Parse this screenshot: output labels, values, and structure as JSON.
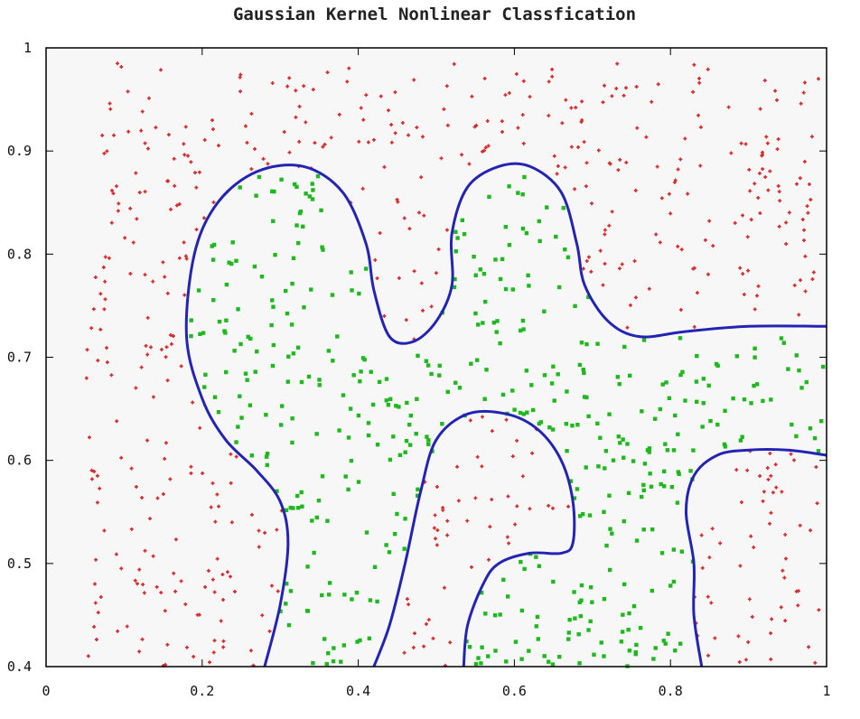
{
  "chart_data": {
    "type": "scatter",
    "title": "Gaussian Kernel Nonlinear Classfication",
    "xlabel": "",
    "ylabel": "",
    "xlim": [
      0,
      1
    ],
    "ylim": [
      0.4,
      1
    ],
    "x_ticks": [
      "0",
      "0.2",
      "0.4",
      "0.6",
      "0.8",
      "1"
    ],
    "y_ticks": [
      "0.4",
      "0.5",
      "0.6",
      "0.7",
      "0.8",
      "0.9",
      "1"
    ],
    "grid": false,
    "legend": "none",
    "colors": {
      "class_outside": "#d42a2a",
      "class_inside": "#1fb81f",
      "boundary": "#2424b4",
      "plot_bg": "#f7f7f7"
    },
    "series": [
      {
        "marker": "cross",
        "color": "#d42a2a",
        "count_estimate": 560,
        "x_samples": [
          0.05,
          0.08,
          0.12,
          0.15,
          0.18,
          0.22,
          0.26,
          0.3,
          0.36,
          0.4,
          0.45,
          0.5,
          0.55,
          0.6,
          0.66,
          0.7,
          0.75,
          0.8,
          0.85,
          0.9,
          0.07,
          0.1,
          0.13,
          0.16,
          0.1,
          0.14,
          0.12,
          0.16,
          0.2,
          0.24,
          0.44,
          0.48,
          0.52,
          0.56,
          0.6,
          0.64,
          0.62,
          0.58,
          0.5,
          0.47,
          0.86,
          0.9,
          0.94,
          0.98,
          0.88,
          0.92,
          0.96,
          0.84,
          0.9,
          0.95
        ],
        "y_samples": [
          0.91,
          0.9,
          0.95,
          0.88,
          0.92,
          0.94,
          0.96,
          0.93,
          0.97,
          0.95,
          0.94,
          0.96,
          0.93,
          0.95,
          0.97,
          0.92,
          0.88,
          0.86,
          0.85,
          0.84,
          0.8,
          0.76,
          0.7,
          0.64,
          0.6,
          0.55,
          0.5,
          0.46,
          0.43,
          0.48,
          0.42,
          0.47,
          0.5,
          0.55,
          0.6,
          0.58,
          0.52,
          0.45,
          0.56,
          0.6,
          0.58,
          0.52,
          0.5,
          0.46,
          0.44,
          0.55,
          0.48,
          0.42,
          0.6,
          0.53
        ]
      },
      {
        "marker": "square",
        "color": "#1fb81f",
        "count_estimate": 480,
        "x_samples": [
          0.22,
          0.25,
          0.28,
          0.3,
          0.33,
          0.36,
          0.38,
          0.26,
          0.3,
          0.35,
          0.23,
          0.27,
          0.32,
          0.37,
          0.42,
          0.47,
          0.52,
          0.57,
          0.62,
          0.67,
          0.72,
          0.77,
          0.82,
          0.87,
          0.92,
          0.55,
          0.58,
          0.62,
          0.65,
          0.6,
          0.35,
          0.38,
          0.4,
          0.42,
          0.45,
          0.48,
          0.5,
          0.68,
          0.72,
          0.75,
          0.78,
          0.74,
          0.7,
          0.65,
          0.58,
          0.6,
          0.63,
          0.56,
          0.66,
          0.36
        ],
        "y_samples": [
          0.8,
          0.84,
          0.82,
          0.78,
          0.85,
          0.8,
          0.76,
          0.72,
          0.7,
          0.74,
          0.66,
          0.63,
          0.68,
          0.65,
          0.67,
          0.7,
          0.66,
          0.72,
          0.69,
          0.71,
          0.68,
          0.66,
          0.67,
          0.65,
          0.64,
          0.84,
          0.8,
          0.82,
          0.78,
          0.75,
          0.6,
          0.56,
          0.52,
          0.48,
          0.44,
          0.55,
          0.5,
          0.6,
          0.55,
          0.52,
          0.48,
          0.45,
          0.5,
          0.47,
          0.46,
          0.43,
          0.42,
          0.41,
          0.56,
          0.46
        ]
      }
    ],
    "decision_boundary": [
      {
        "name": "",
        "points": [
          [
            0.28,
            0.4
          ],
          [
            0.3,
            0.46
          ],
          [
            0.31,
            0.52
          ],
          [
            0.3,
            0.56
          ],
          [
            0.27,
            0.59
          ],
          [
            0.23,
            0.62
          ],
          [
            0.2,
            0.66
          ],
          [
            0.18,
            0.72
          ],
          [
            0.19,
            0.8
          ],
          [
            0.22,
            0.85
          ],
          [
            0.27,
            0.88
          ],
          [
            0.33,
            0.885
          ],
          [
            0.38,
            0.86
          ],
          [
            0.41,
            0.81
          ],
          [
            0.42,
            0.765
          ],
          [
            0.44,
            0.72
          ],
          [
            0.47,
            0.715
          ],
          [
            0.5,
            0.735
          ],
          [
            0.52,
            0.77
          ],
          [
            0.52,
            0.82
          ],
          [
            0.54,
            0.865
          ],
          [
            0.58,
            0.885
          ],
          [
            0.62,
            0.885
          ],
          [
            0.66,
            0.86
          ],
          [
            0.68,
            0.81
          ],
          [
            0.69,
            0.77
          ],
          [
            0.72,
            0.735
          ],
          [
            0.76,
            0.72
          ],
          [
            0.82,
            0.725
          ],
          [
            0.9,
            0.73
          ],
          [
            1.0,
            0.73
          ]
        ]
      },
      {
        "name": "",
        "points": [
          [
            0.42,
            0.4
          ],
          [
            0.44,
            0.44
          ],
          [
            0.46,
            0.5
          ],
          [
            0.48,
            0.57
          ],
          [
            0.5,
            0.62
          ],
          [
            0.54,
            0.645
          ],
          [
            0.59,
            0.645
          ],
          [
            0.63,
            0.63
          ],
          [
            0.66,
            0.6
          ],
          [
            0.675,
            0.56
          ],
          [
            0.675,
            0.52
          ],
          [
            0.66,
            0.51
          ],
          [
            0.62,
            0.51
          ],
          [
            0.58,
            0.5
          ],
          [
            0.56,
            0.48
          ],
          [
            0.54,
            0.44
          ],
          [
            0.535,
            0.4
          ]
        ]
      },
      {
        "name": "",
        "points": [
          [
            0.84,
            0.4
          ],
          [
            0.83,
            0.45
          ],
          [
            0.83,
            0.5
          ],
          [
            0.82,
            0.55
          ],
          [
            0.83,
            0.585
          ],
          [
            0.86,
            0.605
          ],
          [
            0.9,
            0.61
          ],
          [
            0.95,
            0.61
          ],
          [
            1.0,
            0.605
          ]
        ]
      }
    ]
  }
}
